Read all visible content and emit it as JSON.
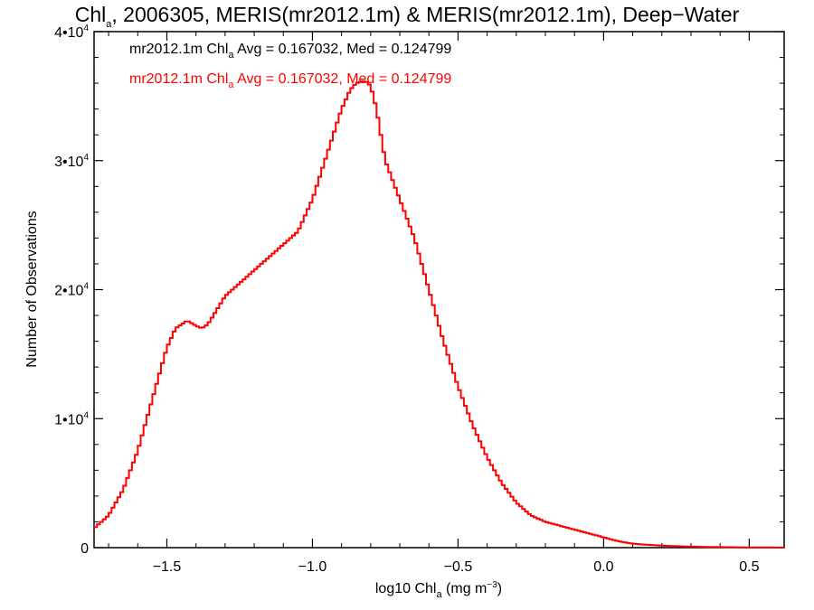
{
  "chart_data": {
    "type": "line",
    "title": "Chl_a, 2006305, MERIS(mr2012.1m) & MERIS(mr2012.1m), Deep-Water",
    "title_parts": {
      "main": "Chl",
      "sub": "a",
      "rest": ", 2006305, MERIS(mr2012.1m) & MERIS(mr2012.1m), Deep−Water"
    },
    "xlabel": "log10 Chl_a (mg m^-3)",
    "xlabel_parts": {
      "main": "log10 Chl",
      "sub": "a",
      "rest": " (mg m",
      "sup": "−3",
      "end": ")"
    },
    "ylabel": "Number of Observations",
    "xlim": [
      -1.75,
      0.62
    ],
    "ylim": [
      0,
      40000
    ],
    "x_ticks": [
      {
        "value": -1.5,
        "label": "−1.5"
      },
      {
        "value": -1.0,
        "label": "−1.0"
      },
      {
        "value": -0.5,
        "label": "−0.5"
      },
      {
        "value": 0.0,
        "label": "0.0"
      },
      {
        "value": 0.5,
        "label": "0.5"
      }
    ],
    "y_ticks": [
      {
        "value": 0,
        "label": "0",
        "exp": ""
      },
      {
        "value": 10000,
        "label": "1•10",
        "exp": "4"
      },
      {
        "value": 20000,
        "label": "2•10",
        "exp": "4"
      },
      {
        "value": 30000,
        "label": "3•10",
        "exp": "4"
      },
      {
        "value": 40000,
        "label": "4•10",
        "exp": "4"
      }
    ],
    "legend": [
      {
        "prefix": "mr2012.1m Chl",
        "sub": "a",
        "text": " Avg = 0.167032, Med = 0.124799",
        "color": "#000000"
      },
      {
        "prefix": "mr2012.1m Chl",
        "sub": "a",
        "text": " Avg = 0.167032, Med = 0.124799",
        "color": "#ff0000"
      }
    ],
    "series": [
      {
        "color": "#ff0000",
        "style": "step",
        "x": [
          -1.75,
          -1.7,
          -1.65,
          -1.6,
          -1.55,
          -1.5,
          -1.47,
          -1.45,
          -1.43,
          -1.4,
          -1.38,
          -1.36,
          -1.34,
          -1.3,
          -1.25,
          -1.2,
          -1.15,
          -1.1,
          -1.05,
          -1.0,
          -0.95,
          -0.9,
          -0.87,
          -0.85,
          -0.82,
          -0.8,
          -0.78,
          -0.75,
          -0.7,
          -0.65,
          -0.6,
          -0.55,
          -0.5,
          -0.45,
          -0.4,
          -0.35,
          -0.3,
          -0.25,
          -0.2,
          -0.15,
          -0.1,
          -0.05,
          0.0,
          0.05,
          0.1,
          0.2,
          0.3,
          0.4,
          0.5,
          0.62
        ],
        "values": [
          1500,
          2500,
          4500,
          7500,
          11500,
          15500,
          17000,
          17300,
          17600,
          17200,
          17000,
          17300,
          18000,
          19500,
          20500,
          21500,
          22500,
          23500,
          24500,
          27000,
          30500,
          34000,
          35500,
          36000,
          36200,
          35800,
          34000,
          30000,
          27000,
          24000,
          20000,
          16000,
          12500,
          9500,
          7000,
          5000,
          3500,
          2500,
          2000,
          1700,
          1400,
          1100,
          800,
          500,
          300,
          150,
          80,
          40,
          20,
          5
        ]
      }
    ]
  }
}
